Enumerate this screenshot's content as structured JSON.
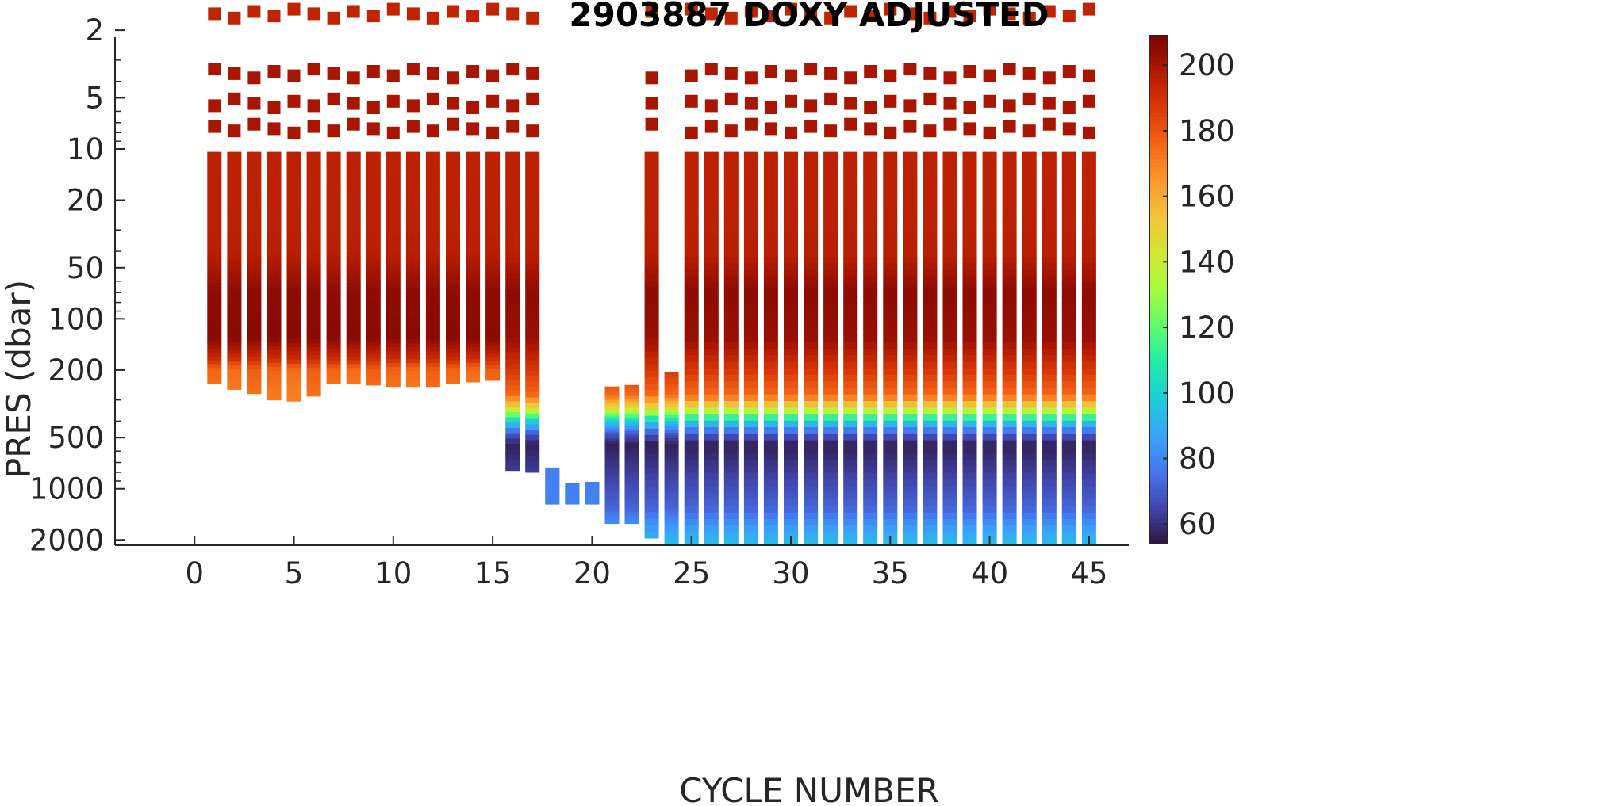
{
  "chart_data": {
    "type": "heatmap",
    "title": "2903887  DOXY ADJUSTED",
    "xlabel": "CYCLE NUMBER",
    "ylabel": "PRES (dbar)",
    "xlim": [
      -4,
      47
    ],
    "ylim": [
      2.2,
      2150
    ],
    "y_scale": "log-reversed",
    "x_ticks": [
      0,
      5,
      10,
      15,
      20,
      25,
      30,
      35,
      40,
      45
    ],
    "y_ticks": [
      2,
      5,
      10,
      20,
      50,
      100,
      200,
      500,
      1000,
      2000
    ],
    "colorbar": {
      "range": [
        54,
        209
      ],
      "ticks": [
        60,
        80,
        100,
        120,
        140,
        160,
        180,
        200
      ],
      "colormap": "turbo",
      "low_color": "#30123b",
      "high_color": "#7a0403"
    },
    "grid": false,
    "surface_samples": {
      "pressures_dbar": [
        1.6,
        3.6,
        5.4,
        7.6
      ],
      "doxy_approx": 200
    },
    "profiles": [
      {
        "cycle": 1,
        "max_pres": 240,
        "profile": "shallow"
      },
      {
        "cycle": 2,
        "max_pres": 260,
        "profile": "shallow"
      },
      {
        "cycle": 3,
        "max_pres": 275,
        "profile": "shallow"
      },
      {
        "cycle": 4,
        "max_pres": 300,
        "profile": "shallow"
      },
      {
        "cycle": 5,
        "max_pres": 305,
        "profile": "shallow"
      },
      {
        "cycle": 6,
        "max_pres": 285,
        "profile": "shallow"
      },
      {
        "cycle": 7,
        "max_pres": 240,
        "profile": "shallow"
      },
      {
        "cycle": 8,
        "max_pres": 240,
        "profile": "shallow"
      },
      {
        "cycle": 9,
        "max_pres": 245,
        "profile": "shallow"
      },
      {
        "cycle": 10,
        "max_pres": 250,
        "profile": "shallow"
      },
      {
        "cycle": 11,
        "max_pres": 250,
        "profile": "shallow"
      },
      {
        "cycle": 12,
        "max_pres": 250,
        "profile": "shallow"
      },
      {
        "cycle": 13,
        "max_pres": 240,
        "profile": "shallow"
      },
      {
        "cycle": 14,
        "max_pres": 235,
        "profile": "shallow"
      },
      {
        "cycle": 15,
        "max_pres": 230,
        "profile": "shallow"
      },
      {
        "cycle": 16,
        "max_pres": 780,
        "profile": "mid"
      },
      {
        "cycle": 17,
        "max_pres": 800,
        "profile": "mid"
      },
      {
        "cycle": 18,
        "min_pres": 750,
        "max_pres": 1230,
        "profile": "deep_only"
      },
      {
        "cycle": 19,
        "min_pres": 930,
        "max_pres": 1230,
        "profile": "deep_only"
      },
      {
        "cycle": 20,
        "min_pres": 910,
        "max_pres": 1230,
        "profile": "deep_only"
      },
      {
        "cycle": 21,
        "min_pres": 250,
        "max_pres": 1600,
        "profile": "no_surface"
      },
      {
        "cycle": 22,
        "min_pres": 245,
        "max_pres": 1600,
        "profile": "no_surface"
      },
      {
        "cycle": 23,
        "max_pres": 1950,
        "profile": "deep"
      },
      {
        "cycle": 24,
        "min_pres": 205,
        "max_pres": 2200,
        "profile": "no_surface"
      },
      {
        "cycle": 25,
        "max_pres": 2300,
        "profile": "deep"
      },
      {
        "cycle": 26,
        "max_pres": 2300,
        "profile": "deep"
      },
      {
        "cycle": 27,
        "max_pres": 2300,
        "profile": "deep"
      },
      {
        "cycle": 28,
        "max_pres": 2300,
        "profile": "deep"
      },
      {
        "cycle": 29,
        "max_pres": 2300,
        "profile": "deep"
      },
      {
        "cycle": 30,
        "max_pres": 2300,
        "profile": "deep"
      },
      {
        "cycle": 31,
        "max_pres": 2300,
        "profile": "deep"
      },
      {
        "cycle": 32,
        "max_pres": 2300,
        "profile": "deep"
      },
      {
        "cycle": 33,
        "max_pres": 2300,
        "profile": "deep"
      },
      {
        "cycle": 34,
        "max_pres": 2300,
        "profile": "deep"
      },
      {
        "cycle": 35,
        "max_pres": 2300,
        "profile": "deep"
      },
      {
        "cycle": 36,
        "max_pres": 2300,
        "profile": "deep"
      },
      {
        "cycle": 37,
        "max_pres": 2300,
        "profile": "deep"
      },
      {
        "cycle": 38,
        "max_pres": 2300,
        "profile": "deep"
      },
      {
        "cycle": 39,
        "max_pres": 2300,
        "profile": "deep"
      },
      {
        "cycle": 40,
        "max_pres": 2300,
        "profile": "deep"
      },
      {
        "cycle": 41,
        "max_pres": 2300,
        "profile": "deep"
      },
      {
        "cycle": 42,
        "max_pres": 2300,
        "profile": "deep"
      },
      {
        "cycle": 43,
        "max_pres": 2300,
        "profile": "deep"
      },
      {
        "cycle": 44,
        "max_pres": 2300,
        "profile": "deep"
      },
      {
        "cycle": 45,
        "max_pres": 2300,
        "profile": "deep"
      }
    ]
  }
}
